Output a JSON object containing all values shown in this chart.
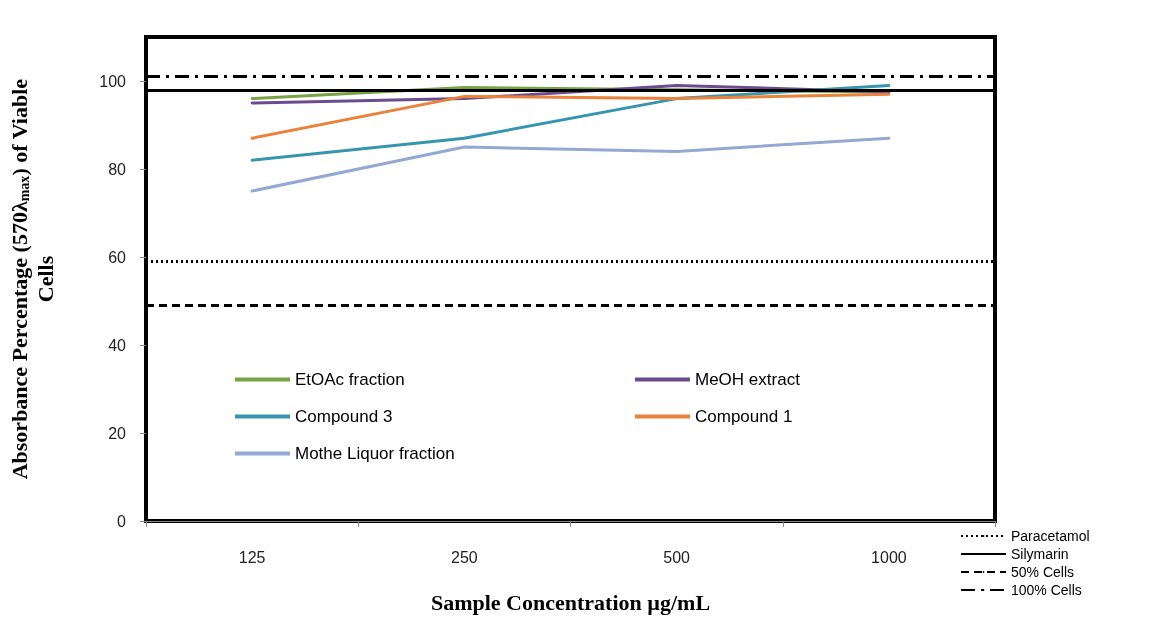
{
  "chart_data": {
    "type": "line",
    "xlabel": "Sample Concentration µg/mL",
    "ylabel": "Absorbance Percentage (570λ$_{max}$) of Viable Cells",
    "categories": [
      "125",
      "250",
      "500",
      "1000"
    ],
    "series": [
      {
        "name": "EtOAc fraction",
        "color": "#77a344",
        "values": [
          96,
          98.5,
          98,
          97.5
        ]
      },
      {
        "name": "MeOH extract",
        "color": "#6b4c8e",
        "values": [
          95,
          96,
          99,
          97.5
        ]
      },
      {
        "name": "Compound 3",
        "color": "#3596ad",
        "values": [
          82,
          87,
          96,
          99
        ]
      },
      {
        "name": "Compound 1",
        "color": "#e9823a",
        "values": [
          87,
          96.5,
          96,
          97
        ]
      },
      {
        "name": "Mothe Liquor fraction",
        "color": "#93a9d1",
        "values": [
          75,
          85,
          84,
          87
        ]
      }
    ],
    "ref_lines": [
      {
        "axis": "y",
        "value": 59,
        "label": "Paracetamol",
        "color": "#000000",
        "line_style": "dotted"
      },
      {
        "axis": "y",
        "value": 98,
        "label": "Silymarin",
        "color": "#000000",
        "line_style": "solid"
      },
      {
        "axis": "y",
        "value": 49,
        "label": "50% Cells",
        "color": "#000000",
        "line_style": "dashed"
      },
      {
        "axis": "y",
        "value": 101,
        "label": "100% Cells",
        "color": "#000000",
        "line_style": "dashdot"
      }
    ],
    "ylim": [
      0,
      110
    ],
    "yticks": [
      0,
      20,
      40,
      60,
      80,
      100
    ],
    "grid": false,
    "legend": "bottom",
    "marker": "none",
    "line_style": "solid"
  }
}
